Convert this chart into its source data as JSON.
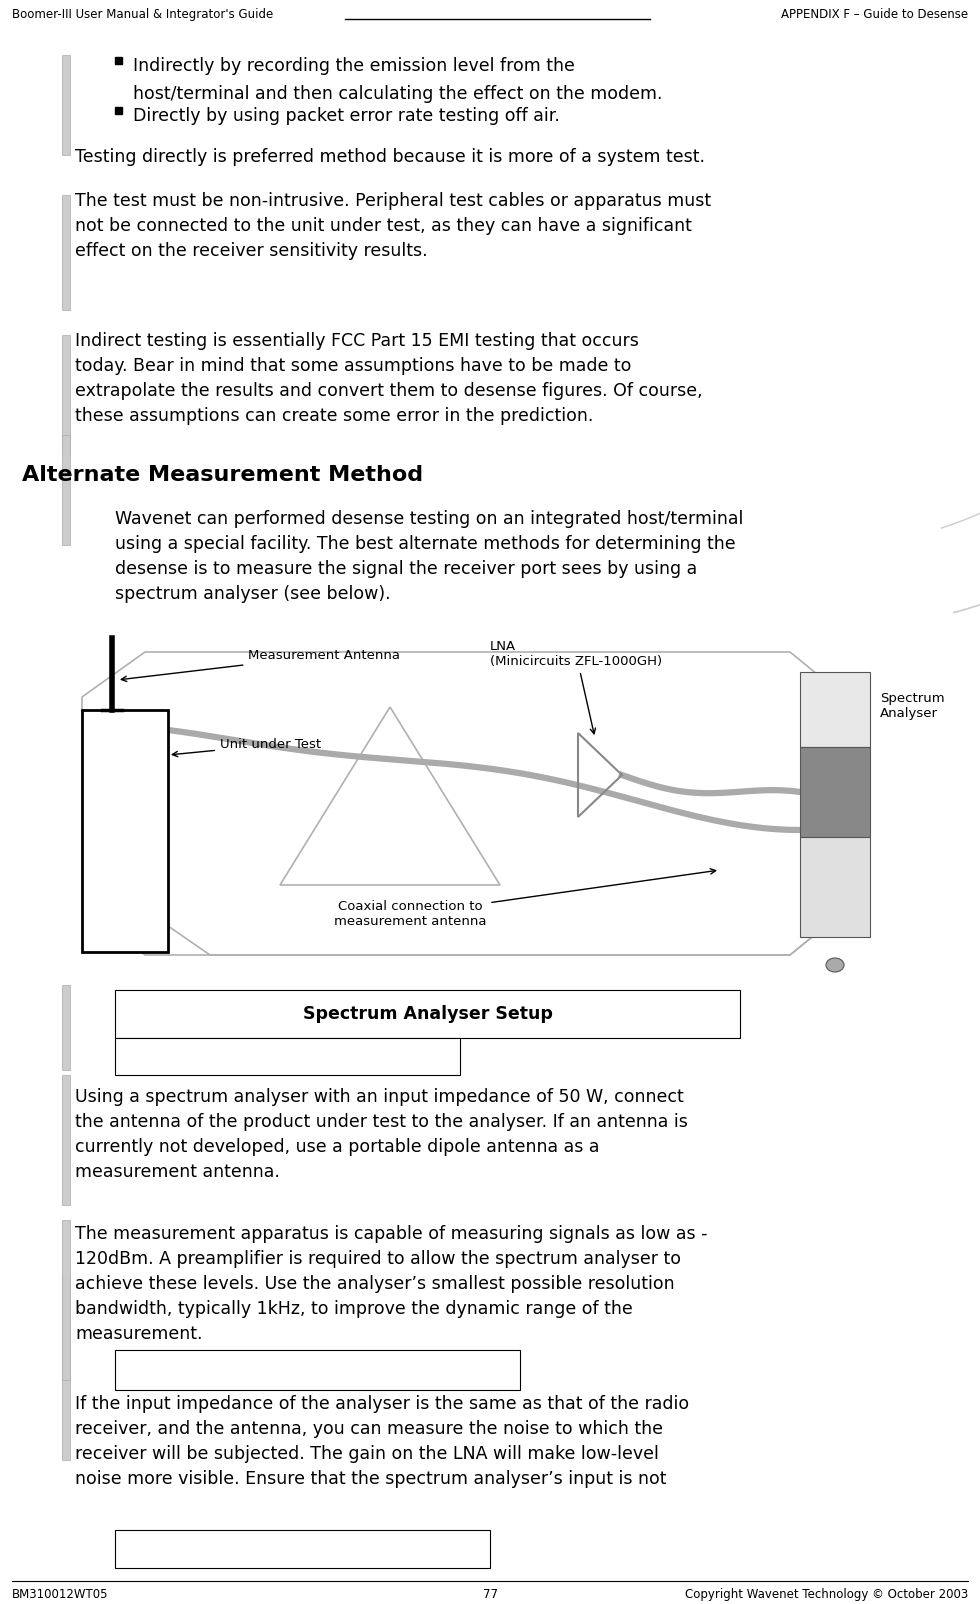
{
  "header_left": "Boomer-III User Manual & Integrator's Guide",
  "header_right": "APPENDIX F – Guide to Desense",
  "footer_left": "BM310012WT05",
  "footer_center": "77",
  "footer_right": "Copyright Wavenet Technology © October 2003",
  "bullet1_line1": "Indirectly by recording the emission level from the",
  "bullet1_line2": "host/terminal and then calculating the effect on the modem.",
  "bullet2": "Directly by using packet error rate testing off air.",
  "para1": "Testing directly is preferred method because it is more of a system test.",
  "para2": "The test must be non-intrusive. Peripheral test cables or apparatus must\nnot be connected to the unit under test, as they can have a significant\neffect on the receiver sensitivity results.",
  "para3": "Indirect testing is essentially FCC Part 15 EMI testing that occurs\ntoday. Bear in mind that some assumptions have to be made to\nextrapolate the results and convert them to desense figures. Of course,\nthese assumptions can create some error in the prediction.",
  "section_title": "Alternate Measurement Method",
  "para4": "Wavenet can performed desense testing on an integrated host/terminal\nusing a special facility. The best alternate methods for determining the\ndesense is to measure the signal the receiver port sees by using a\nspectrum analyser (see below).",
  "diagram_label_antenna": "Measurement Antenna",
  "diagram_label_uut": "Unit under Test",
  "diagram_label_lna": "LNA\n(Minicircuits ZFL-1000GH)",
  "diagram_label_analyser": "Spectrum\nAnalyser",
  "diagram_label_coaxial": "Coaxial connection to\nmeasurement antenna",
  "box_title": "Spectrum Analyser Setup",
  "para5": "Using a spectrum analyser with an input impedance of 50 W, connect\nthe antenna of the product under test to the analyser. If an antenna is\ncurrently not developed, use a portable dipole antenna as a\nmeasurement antenna.",
  "para6": "The measurement apparatus is capable of measuring signals as low as -\n120dBm. A preamplifier is required to allow the spectrum analyser to\nachieve these levels. Use the analyser’s smallest possible resolution\nbandwidth, typically 1kHz, to improve the dynamic range of the\nmeasurement.",
  "para7": "If the input impedance of the analyser is the same as that of the radio\nreceiver, and the antenna, you can measure the noise to which the\nreceiver will be subjected. The gain on the LNA will make low-level\nnoise more visible. Ensure that the spectrum analyser’s input is not",
  "bg_color": "#ffffff",
  "text_color": "#000000",
  "gray_light": "#e8e8e8",
  "gray_mid": "#b0b0b0",
  "gray_dark": "#888888",
  "gray_border": "#aaaaaa"
}
